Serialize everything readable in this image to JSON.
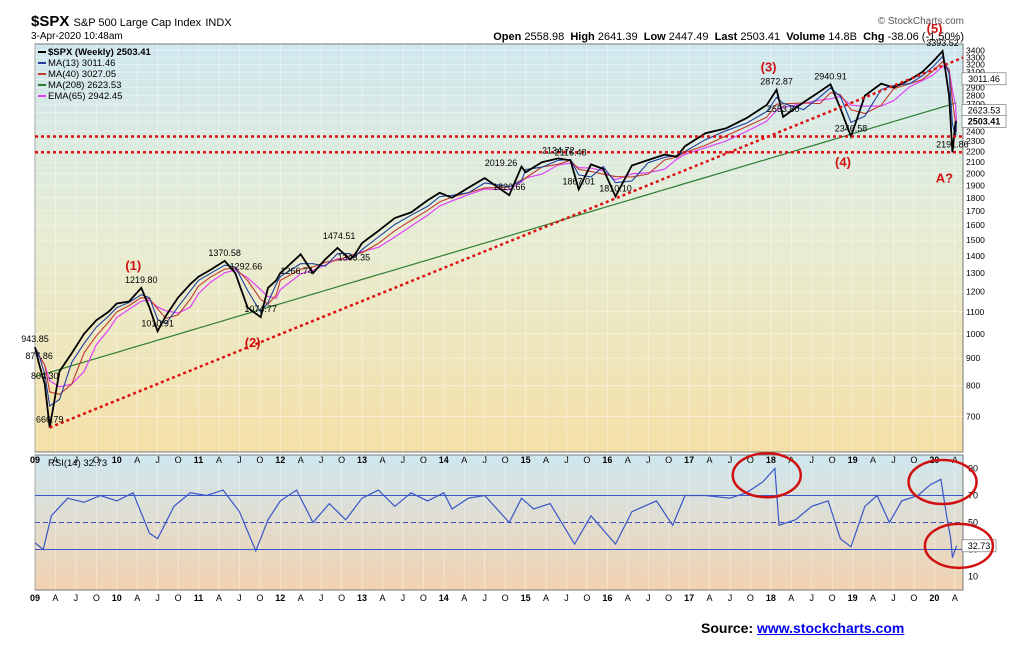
{
  "header": {
    "symbol": "$SPX",
    "name": "S&P 500 Large Cap Index",
    "exchange": "INDX",
    "datetime": "3-Apr-2020 10:48am",
    "credit": "© StockCharts.com",
    "open_label": "Open",
    "open": "2558.98",
    "high_label": "High",
    "high": "2641.39",
    "low_label": "Low",
    "low": "2447.49",
    "last_label": "Last",
    "last": "2503.41",
    "volume_label": "Volume",
    "volume": "14.8B",
    "chg_label": "Chg",
    "chg": "-38.06 (-1.50%)"
  },
  "source": {
    "label": "Source:",
    "link": "www.stockcharts.com"
  },
  "colors": {
    "price": "#000000",
    "ma13": "#1f3f9f",
    "ma40": "#c0392b",
    "ma208": "#2e7d32",
    "ema65": "#e040fb",
    "rsi": "#3a55c8",
    "trend": "#dd1111",
    "callout": "#d01010"
  },
  "chart_data": [
    {
      "type": "line",
      "title": "$SPX (Weekly) 2503.41",
      "series": [
        {
          "name": "$SPX (Weekly) 2503.41"
        },
        {
          "name": "MA(13) 3011.46"
        },
        {
          "name": "MA(40) 3027.05"
        },
        {
          "name": "MA(208) 2623.53"
        },
        {
          "name": "EMA(65) 2942.45"
        }
      ],
      "x_ticks": [
        "09",
        "A",
        "J",
        "O",
        "10",
        "A",
        "J",
        "O",
        "11",
        "A",
        "J",
        "O",
        "12",
        "A",
        "J",
        "O",
        "13",
        "A",
        "J",
        "O",
        "14",
        "A",
        "J",
        "O",
        "15",
        "A",
        "J",
        "O",
        "16",
        "A",
        "J",
        "O",
        "17",
        "A",
        "J",
        "O",
        "18",
        "A",
        "J",
        "O",
        "19",
        "A",
        "J",
        "O",
        "20",
        "A"
      ],
      "y_ticks": [
        700,
        800,
        900,
        1000,
        1100,
        1200,
        1300,
        1400,
        1500,
        1600,
        1700,
        1800,
        1900,
        2000,
        2100,
        2200,
        2300,
        2400,
        2500,
        2600,
        2700,
        2800,
        2900,
        3000,
        3100,
        3200,
        3300,
        3400
      ],
      "y_scale": "log",
      "ylim": [
        600,
        3500
      ],
      "xlim": [
        2009.0,
        2020.35
      ],
      "points": [
        [
          2009.0,
          943.85
        ],
        [
          2009.05,
          877.86
        ],
        [
          2009.12,
          804.3
        ],
        [
          2009.18,
          666.79
        ],
        [
          2009.3,
          850
        ],
        [
          2009.45,
          920
        ],
        [
          2009.6,
          1000
        ],
        [
          2009.75,
          1060
        ],
        [
          2009.9,
          1100
        ],
        [
          2010.0,
          1140
        ],
        [
          2010.15,
          1150
        ],
        [
          2010.3,
          1219.8
        ],
        [
          2010.4,
          1120
        ],
        [
          2010.5,
          1010.91
        ],
        [
          2010.6,
          1080
        ],
        [
          2010.75,
          1170
        ],
        [
          2010.9,
          1240
        ],
        [
          2011.0,
          1280
        ],
        [
          2011.15,
          1320
        ],
        [
          2011.32,
          1370.58
        ],
        [
          2011.45,
          1300
        ],
        [
          2011.6,
          1120
        ],
        [
          2011.76,
          1074.77
        ],
        [
          2011.85,
          1220
        ],
        [
          2011.95,
          1260
        ],
        [
          2012.0,
          1300
        ],
        [
          2012.25,
          1410
        ],
        [
          2012.4,
          1300
        ],
        [
          2012.55,
          1380
        ],
        [
          2012.7,
          1450
        ],
        [
          2012.85,
          1380
        ],
        [
          2012.9,
          1400
        ],
        [
          2013.0,
          1480
        ],
        [
          2013.2,
          1560
        ],
        [
          2013.4,
          1650
        ],
        [
          2013.6,
          1690
        ],
        [
          2013.8,
          1780
        ],
        [
          2013.95,
          1840
        ],
        [
          2014.1,
          1800
        ],
        [
          2014.3,
          1880
        ],
        [
          2014.5,
          1960
        ],
        [
          2014.8,
          1820.66
        ],
        [
          2014.95,
          2060
        ],
        [
          2015.0,
          2010
        ],
        [
          2015.2,
          2100
        ],
        [
          2015.4,
          2134.72
        ],
        [
          2015.55,
          2116.48
        ],
        [
          2015.65,
          1867.01
        ],
        [
          2015.8,
          2080
        ],
        [
          2015.95,
          2040
        ],
        [
          2016.1,
          1810.1
        ],
        [
          2016.3,
          2070
        ],
        [
          2016.5,
          2120
        ],
        [
          2016.7,
          2170
        ],
        [
          2016.85,
          2150
        ],
        [
          2016.95,
          2250
        ],
        [
          2017.2,
          2380
        ],
        [
          2017.45,
          2430
        ],
        [
          2017.7,
          2540
        ],
        [
          2017.95,
          2690
        ],
        [
          2018.07,
          2872.87
        ],
        [
          2018.15,
          2553.8
        ],
        [
          2018.4,
          2720
        ],
        [
          2018.6,
          2850
        ],
        [
          2018.73,
          2940.91
        ],
        [
          2018.85,
          2650
        ],
        [
          2018.98,
          2346.58
        ],
        [
          2019.15,
          2800
        ],
        [
          2019.35,
          2950
        ],
        [
          2019.5,
          2900
        ],
        [
          2019.7,
          3000
        ],
        [
          2019.85,
          3100
        ],
        [
          2019.98,
          3240
        ],
        [
          2020.1,
          3393.52
        ],
        [
          2020.18,
          2800
        ],
        [
          2020.22,
          2191.86
        ],
        [
          2020.26,
          2500
        ],
        [
          2020.27,
          2503.41
        ]
      ],
      "annotations": [
        {
          "text": "943.85",
          "x": 2009.0,
          "y": 943.85
        },
        {
          "text": "877.86",
          "x": 2009.05,
          "y": 877.86
        },
        {
          "text": "804.30",
          "x": 2009.12,
          "y": 804.3
        },
        {
          "text": "666.79",
          "x": 2009.18,
          "y": 666.79
        },
        {
          "text": "1219.80",
          "x": 2010.3,
          "y": 1219.8
        },
        {
          "text": "1010.91",
          "x": 2010.5,
          "y": 1010.91
        },
        {
          "text": "1370.58",
          "x": 2011.32,
          "y": 1370.58
        },
        {
          "text": "1292.66",
          "x": 2011.58,
          "y": 1292.66
        },
        {
          "text": "1074.77",
          "x": 2011.76,
          "y": 1074.77
        },
        {
          "text": "1266.74",
          "x": 2012.2,
          "y": 1266.74
        },
        {
          "text": "1474.51",
          "x": 2012.72,
          "y": 1474.51
        },
        {
          "text": "1343.35",
          "x": 2012.9,
          "y": 1343.35
        },
        {
          "text": "2019.26",
          "x": 2014.7,
          "y": 2019.26
        },
        {
          "text": "1820.66",
          "x": 2014.8,
          "y": 1820.66
        },
        {
          "text": "2134.72",
          "x": 2015.4,
          "y": 2134.72
        },
        {
          "text": "2116.48",
          "x": 2015.55,
          "y": 2116.48
        },
        {
          "text": "1867.01",
          "x": 2015.65,
          "y": 1867.01
        },
        {
          "text": "1810.10",
          "x": 2016.1,
          "y": 1810.1
        },
        {
          "text": "2872.87",
          "x": 2018.07,
          "y": 2872.87
        },
        {
          "text": "2553.80",
          "x": 2018.15,
          "y": 2553.8
        },
        {
          "text": "2940.91",
          "x": 2018.73,
          "y": 2940.91
        },
        {
          "text": "2346.58",
          "x": 2018.98,
          "y": 2346.58
        },
        {
          "text": "3393.52",
          "x": 2020.1,
          "y": 3393.52
        },
        {
          "text": "2191.86",
          "x": 2020.22,
          "y": 2191.86
        }
      ],
      "wave_labels": [
        {
          "text": "(1)",
          "x": 2010.3,
          "y": 1219.8
        },
        {
          "text": "(2)",
          "x": 2011.76,
          "y": 1074.77
        },
        {
          "text": "(3)",
          "x": 2018.07,
          "y": 2872.87
        },
        {
          "text": "(4)",
          "x": 2018.98,
          "y": 2346.58
        },
        {
          "text": "(5)",
          "x": 2020.1,
          "y": 3393.52
        },
        {
          "text": "A?",
          "x": 2020.22,
          "y": 2191.86
        }
      ],
      "right_labels": [
        "3011.46",
        "2623.53",
        "2503.41"
      ],
      "horizontal_levels": [
        2346.58,
        2191.86
      ],
      "trendline": [
        [
          2009.18,
          666.79
        ],
        [
          2020.35,
          3300
        ]
      ]
    },
    {
      "type": "line",
      "title": "RSI(14) 32.73",
      "series": [
        {
          "name": "RSI(14) 32.73"
        }
      ],
      "x_ticks": [
        "09",
        "A",
        "J",
        "O",
        "10",
        "A",
        "J",
        "O",
        "11",
        "A",
        "J",
        "O",
        "12",
        "A",
        "J",
        "O",
        "13",
        "A",
        "J",
        "O",
        "14",
        "A",
        "J",
        "O",
        "15",
        "A",
        "J",
        "O",
        "16",
        "A",
        "J",
        "O",
        "17",
        "A",
        "J",
        "O",
        "18",
        "A",
        "J",
        "O",
        "19",
        "A",
        "J",
        "O",
        "20",
        "A"
      ],
      "y_ticks": [
        10,
        30,
        50,
        70,
        90
      ],
      "ylim": [
        0,
        100
      ],
      "xlim": [
        2009.0,
        2020.35
      ],
      "reference_levels": [
        30,
        50,
        70
      ],
      "last_value_label": "32.73",
      "points": [
        [
          2009.0,
          35
        ],
        [
          2009.1,
          30
        ],
        [
          2009.2,
          55
        ],
        [
          2009.4,
          68
        ],
        [
          2009.6,
          65
        ],
        [
          2009.8,
          70
        ],
        [
          2010.0,
          66
        ],
        [
          2010.2,
          72
        ],
        [
          2010.4,
          42
        ],
        [
          2010.5,
          38
        ],
        [
          2010.7,
          62
        ],
        [
          2010.9,
          72
        ],
        [
          2011.1,
          70
        ],
        [
          2011.3,
          74
        ],
        [
          2011.5,
          58
        ],
        [
          2011.7,
          29
        ],
        [
          2011.85,
          52
        ],
        [
          2012.0,
          66
        ],
        [
          2012.2,
          74
        ],
        [
          2012.4,
          50
        ],
        [
          2012.6,
          64
        ],
        [
          2012.8,
          52
        ],
        [
          2013.0,
          68
        ],
        [
          2013.2,
          74
        ],
        [
          2013.4,
          62
        ],
        [
          2013.6,
          72
        ],
        [
          2013.8,
          66
        ],
        [
          2014.0,
          72
        ],
        [
          2014.1,
          60
        ],
        [
          2014.3,
          68
        ],
        [
          2014.5,
          70
        ],
        [
          2014.8,
          50
        ],
        [
          2014.95,
          68
        ],
        [
          2015.1,
          60
        ],
        [
          2015.3,
          64
        ],
        [
          2015.6,
          34
        ],
        [
          2015.8,
          55
        ],
        [
          2016.1,
          34
        ],
        [
          2016.3,
          58
        ],
        [
          2016.6,
          66
        ],
        [
          2016.8,
          48
        ],
        [
          2016.95,
          70
        ],
        [
          2017.2,
          70
        ],
        [
          2017.5,
          68
        ],
        [
          2017.7,
          72
        ],
        [
          2017.9,
          80
        ],
        [
          2018.05,
          90
        ],
        [
          2018.1,
          48
        ],
        [
          2018.3,
          52
        ],
        [
          2018.5,
          62
        ],
        [
          2018.7,
          66
        ],
        [
          2018.85,
          38
        ],
        [
          2018.98,
          32
        ],
        [
          2019.15,
          62
        ],
        [
          2019.3,
          70
        ],
        [
          2019.45,
          50
        ],
        [
          2019.6,
          66
        ],
        [
          2019.8,
          70
        ],
        [
          2019.95,
          78
        ],
        [
          2020.08,
          82
        ],
        [
          2020.15,
          55
        ],
        [
          2020.2,
          38
        ],
        [
          2020.22,
          24
        ],
        [
          2020.27,
          32.73
        ]
      ],
      "callouts": [
        {
          "x": 2017.95,
          "y": 85
        },
        {
          "x": 2020.1,
          "y": 80
        },
        {
          "x": 2020.3,
          "y": 32.73
        }
      ]
    }
  ]
}
